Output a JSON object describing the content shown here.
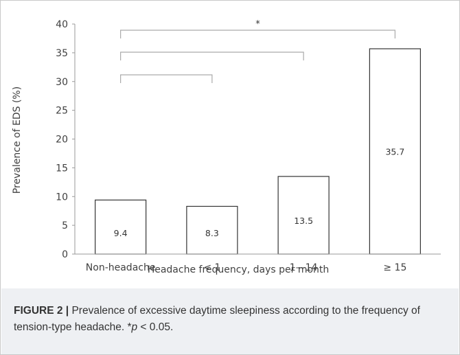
{
  "chart_data": {
    "type": "bar",
    "categories": [
      "Non-headache",
      "< 1",
      "1—14",
      "≥ 15"
    ],
    "values": [
      9.4,
      8.3,
      13.5,
      35.7
    ],
    "data_labels": [
      "9.4",
      "8.3",
      "13.5",
      "35.7"
    ],
    "xlabel": "Headache frequency, days per month",
    "ylabel": "Prevalence of EDS (%)",
    "ylim": [
      0,
      40
    ],
    "yticks": [
      0,
      5,
      10,
      15,
      20,
      25,
      30,
      35,
      40
    ],
    "grid": false,
    "legend": "none",
    "bar_fill": "#ffffff",
    "bar_stroke": "#333333",
    "significance_brackets": [
      {
        "from": 0,
        "to": 3,
        "label": "*"
      },
      {
        "from": 0,
        "to": 2,
        "label": ""
      },
      {
        "from": 0,
        "to": 1,
        "label": ""
      }
    ]
  },
  "caption": {
    "label": "FIGURE 2 |",
    "text": " Prevalence of excessive daytime sleepiness according to the frequency of tension-type headache. *",
    "p_symbol": "p",
    "p_threshold": " < 0.05."
  },
  "colors": {
    "axis": "#999999",
    "bracket": "#aaaaaa",
    "text": "#404040",
    "caption_bg": "#eef0f3",
    "caption_text": "#333333"
  }
}
